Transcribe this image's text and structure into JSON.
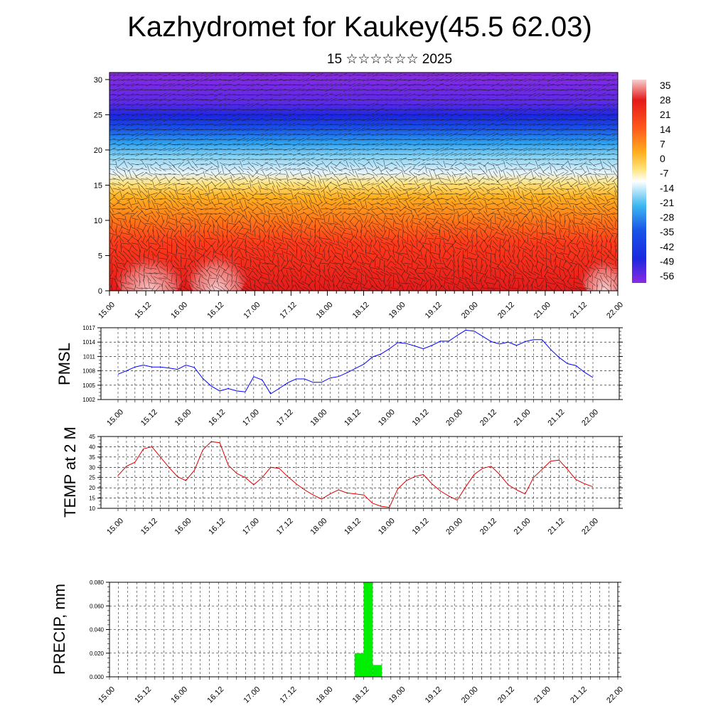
{
  "header": {
    "title": "Kazhydromet for Kaukey(45.5 62.03)",
    "subtitle": "15 ☆☆☆☆☆☆ 2025"
  },
  "time_axis": {
    "labels": [
      "15.00",
      "15.12",
      "16.00",
      "16.12",
      "17.00",
      "17.12",
      "18.00",
      "18.12",
      "19.00",
      "19.12",
      "20.00",
      "20.12",
      "21.00",
      "21.12",
      "22.00"
    ]
  },
  "colorbar": {
    "labels": [
      "35",
      "28",
      "21",
      "14",
      "7",
      "0",
      "-7",
      "-14",
      "-21",
      "-28",
      "-35",
      "-42",
      "-49",
      "-56"
    ]
  },
  "chart_data": [
    {
      "type": "heatmap",
      "title": "Kazhydromet for Kaukey(45.5 62.03)",
      "ylim": [
        0,
        31
      ],
      "y_ticks": [
        "0",
        "5",
        "10",
        "15",
        "20",
        "25",
        "30"
      ],
      "x_tick_labels": [
        "15.00",
        "15.12",
        "16.00",
        "16.12",
        "17.00",
        "17.12",
        "18.00",
        "18.12",
        "19.00",
        "19.12",
        "20.00",
        "20.12",
        "21.00",
        "21.12",
        "22.00"
      ],
      "colorbar_levels": [
        35,
        28,
        21,
        14,
        7,
        0,
        -7,
        -14,
        -21,
        -28,
        -35,
        -42,
        -49,
        -56
      ],
      "colors": {
        "warm_max": "#f6d0d0",
        "red": "#e41a1a",
        "orange": "#ff8c1a",
        "yellow": "#ffe37a",
        "cyan": "#3cb8f0",
        "blue": "#1a28e0",
        "violet": "#8a2be2"
      }
    },
    {
      "type": "line",
      "ylabel": "PMSL",
      "ylim": [
        1002,
        1017
      ],
      "y_ticks": [
        "1002",
        "1005",
        "1008",
        "1011",
        "1014",
        "1017"
      ],
      "x": [
        0,
        3,
        6,
        9,
        12,
        15,
        18,
        21,
        24,
        27,
        30,
        33,
        36,
        39,
        42,
        45,
        48,
        51,
        54,
        57,
        60,
        63,
        66,
        69,
        72,
        75,
        78,
        81,
        84,
        87,
        90,
        93,
        96,
        99,
        102,
        105,
        108,
        111,
        114,
        117,
        120,
        123,
        126,
        129,
        132,
        135,
        138,
        141,
        144,
        147,
        150,
        153,
        156,
        159,
        162,
        165,
        168
      ],
      "series": [
        {
          "values": [
            1007.3,
            1008,
            1008.8,
            1009.2,
            1008.8,
            1008.8,
            1008.6,
            1008.3,
            1009.2,
            1008.7,
            1006.4,
            1004.8,
            1003.8,
            1004.3,
            1003.8,
            1003.6,
            1006.8,
            1006.1,
            1003.2,
            1004.3,
            1005.5,
            1006.3,
            1006.3,
            1005.6,
            1005.6,
            1006.5,
            1006.8,
            1007.6,
            1008.5,
            1009.4,
            1010.9,
            1011.5,
            1012.6,
            1013.9,
            1013.7,
            1013.2,
            1012.6,
            1013.3,
            1014.2,
            1014.2,
            1015.4,
            1016.5,
            1016.3,
            1015.2,
            1014.1,
            1013.6,
            1014,
            1013.3,
            1014.1,
            1014.5,
            1014.5,
            1012.5,
            1010.8,
            1009.5,
            1009.1,
            1007.7,
            1006.6
          ],
          "color": "#0000ff"
        }
      ]
    },
    {
      "type": "line",
      "ylabel": "TEMP at 2 M",
      "ylim": [
        10,
        45
      ],
      "y_ticks": [
        "10",
        "15",
        "20",
        "25",
        "30",
        "35",
        "40",
        "45"
      ],
      "x": [
        0,
        3,
        6,
        9,
        12,
        15,
        18,
        21,
        24,
        27,
        30,
        33,
        36,
        39,
        42,
        45,
        48,
        51,
        54,
        57,
        60,
        63,
        66,
        69,
        72,
        75,
        78,
        81,
        84,
        87,
        90,
        93,
        96,
        99,
        102,
        105,
        108,
        111,
        114,
        117,
        120,
        123,
        126,
        129,
        132,
        135,
        138,
        141,
        144,
        147,
        150,
        153,
        156,
        159,
        162,
        165,
        168
      ],
      "series": [
        {
          "values": [
            26,
            30.5,
            32.5,
            39,
            40,
            35,
            30,
            25.5,
            23.5,
            28.5,
            38.5,
            42.5,
            42,
            31,
            27,
            25,
            21.5,
            25,
            30,
            29.5,
            25.5,
            22,
            19,
            16.5,
            14.5,
            17,
            19,
            17.5,
            17,
            16.5,
            12.5,
            11,
            10.5,
            19.5,
            23.5,
            25.5,
            26.5,
            22,
            18.5,
            16,
            14,
            20.5,
            26.5,
            29.5,
            30.5,
            26.5,
            21.5,
            19,
            17,
            25,
            29,
            33,
            33.5,
            29,
            24,
            22,
            20.5
          ],
          "color": "#e00000"
        }
      ]
    },
    {
      "type": "bar",
      "ylabel": "PRECIP, mm",
      "ylim": [
        0,
        0.08
      ],
      "y_ticks": [
        "0.000",
        "0.020",
        "0.040",
        "0.060",
        "0.080"
      ],
      "x": [
        81,
        84,
        87
      ],
      "values": [
        0.02,
        0.08,
        0.01
      ],
      "bar_width_hours": 3,
      "color": "#00ee00"
    }
  ]
}
